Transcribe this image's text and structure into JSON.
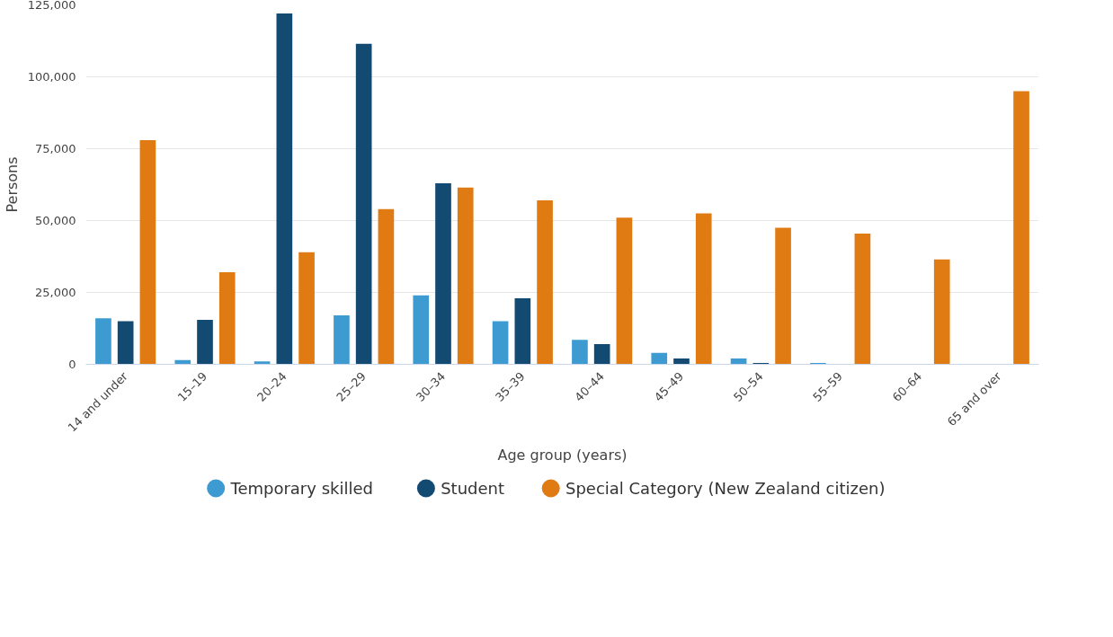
{
  "chart_data": {
    "type": "bar",
    "xlabel": "Age group (years)",
    "ylabel": "Persons",
    "categories": [
      "14 and under",
      "15–19",
      "20–24",
      "25–29",
      "30–34",
      "35–39",
      "40–44",
      "45–49",
      "50–54",
      "55–59",
      "60–64",
      "65 and over"
    ],
    "series": [
      {
        "name": "Temporary skilled",
        "color": "#3d9bd1",
        "values": [
          16000,
          1500,
          1000,
          17000,
          24000,
          15000,
          8500,
          4000,
          2000,
          500,
          0,
          0
        ]
      },
      {
        "name": "Student",
        "color": "#134a72",
        "values": [
          15000,
          15500,
          122000,
          111500,
          63000,
          23000,
          7000,
          2000,
          500,
          0,
          0,
          0
        ]
      },
      {
        "name": "Special Category (New Zealand citizen)",
        "color": "#e07b14",
        "values": [
          78000,
          32000,
          39000,
          54000,
          61500,
          57000,
          51000,
          52500,
          47500,
          45500,
          36500,
          95000
        ]
      }
    ],
    "ylim": [
      0,
      125000
    ],
    "yticks": [
      {
        "value": 0,
        "label": "0"
      },
      {
        "value": 25000,
        "label": "25,000"
      },
      {
        "value": 50000,
        "label": "50,000"
      },
      {
        "value": 75000,
        "label": "75,000"
      },
      {
        "value": 100000,
        "label": "100,000"
      },
      {
        "value": 125000,
        "label": "125,000"
      }
    ],
    "grid": "y",
    "legend": "bottom"
  }
}
